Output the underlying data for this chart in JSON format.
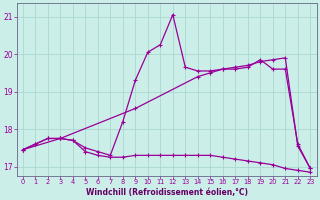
{
  "background_color": "#cceee8",
  "grid_color": "#aad8d0",
  "line_color": "#990099",
  "xlabel": "Windchill (Refroidissement éolien,°C)",
  "xlabel_color": "#660066",
  "xlim": [
    -0.5,
    23.5
  ],
  "ylim": [
    16.75,
    21.35
  ],
  "yticks": [
    17,
    18,
    19,
    20,
    21
  ],
  "xticks": [
    0,
    1,
    2,
    3,
    4,
    5,
    6,
    7,
    8,
    9,
    10,
    11,
    12,
    13,
    14,
    15,
    16,
    17,
    18,
    19,
    20,
    21,
    22,
    23
  ],
  "line1_x": [
    0,
    1,
    2,
    3,
    4,
    5,
    6,
    7,
    8,
    9,
    10,
    11,
    12,
    13,
    14,
    15,
    16,
    17,
    18,
    19,
    20,
    21,
    22,
    23
  ],
  "line1_y": [
    17.45,
    17.6,
    17.75,
    17.75,
    17.7,
    17.4,
    17.3,
    17.25,
    17.25,
    17.3,
    17.3,
    17.3,
    17.3,
    17.3,
    17.3,
    17.3,
    17.25,
    17.2,
    17.15,
    17.1,
    17.05,
    16.95,
    16.9,
    16.85
  ],
  "line2_x": [
    0,
    1,
    2,
    3,
    4,
    5,
    6,
    7,
    8,
    9,
    10,
    11,
    12,
    13,
    14,
    15,
    16,
    17,
    18,
    19,
    20,
    21,
    22,
    23
  ],
  "line2_y": [
    17.45,
    17.6,
    17.75,
    17.75,
    17.7,
    17.5,
    17.4,
    17.3,
    18.2,
    19.3,
    20.05,
    20.25,
    21.05,
    19.65,
    19.55,
    19.55,
    19.6,
    19.6,
    19.65,
    19.85,
    19.6,
    19.6,
    17.6,
    16.95
  ],
  "line3_x": [
    0,
    3,
    9,
    14,
    15,
    16,
    17,
    18,
    19,
    20,
    21,
    22,
    23
  ],
  "line3_y": [
    17.45,
    17.75,
    18.55,
    19.4,
    19.5,
    19.6,
    19.65,
    19.7,
    19.8,
    19.85,
    19.9,
    17.55,
    16.95
  ]
}
